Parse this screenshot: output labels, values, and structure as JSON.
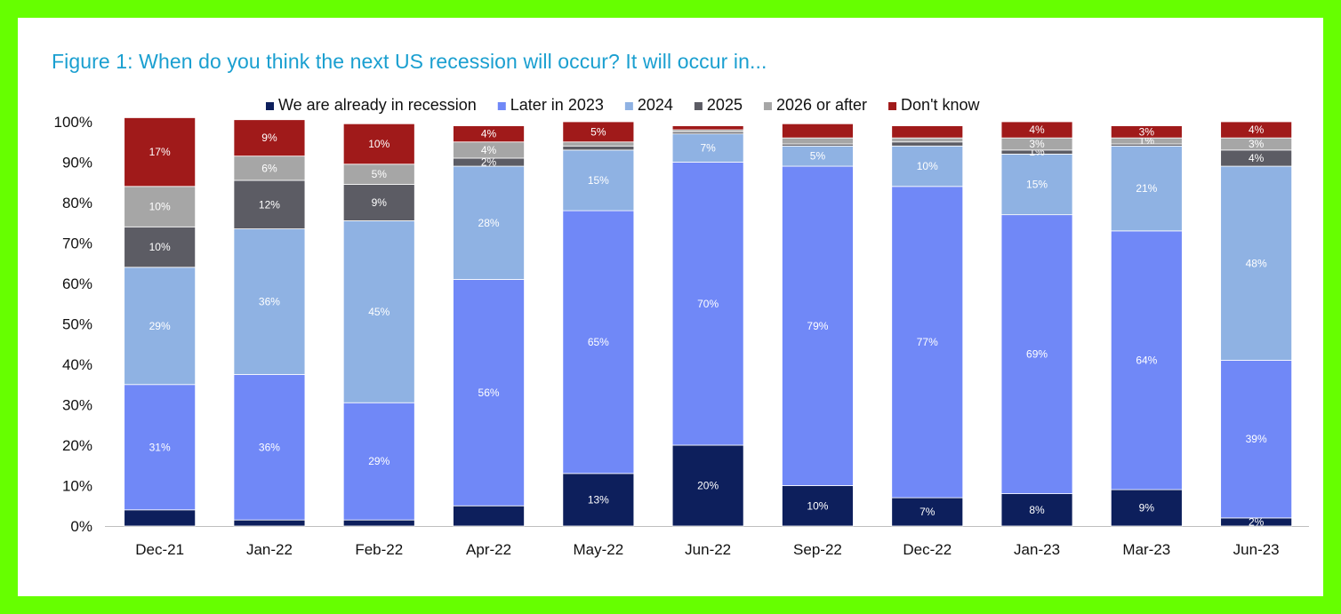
{
  "chart_data": {
    "type": "bar",
    "stacked": true,
    "title": "Figure 1: When do you think the next US recession will occur? It will occur in...",
    "xlabel": "",
    "ylabel": "",
    "ylim": [
      0,
      100
    ],
    "yticks": [
      "0%",
      "10%",
      "20%",
      "30%",
      "40%",
      "50%",
      "60%",
      "70%",
      "80%",
      "90%",
      "100%"
    ],
    "legend_position": "top",
    "grid": false,
    "categories": [
      "Dec-21",
      "Jan-22",
      "Feb-22",
      "Apr-22",
      "May-22",
      "Jun-22",
      "Sep-22",
      "Dec-22",
      "Jan-23",
      "Mar-23",
      "Jun-23"
    ],
    "series": [
      {
        "name": "We are already in recession",
        "color": "#0d1f5c",
        "values": [
          4,
          1.5,
          1.5,
          5,
          13,
          20,
          10,
          7,
          8,
          9,
          2
        ],
        "labels": [
          "",
          "",
          "",
          "",
          "13%",
          "20%",
          "10%",
          "7%",
          "8%",
          "9%",
          "2%"
        ]
      },
      {
        "name": "Later in 2023",
        "color": "#7088f7",
        "values": [
          31,
          36,
          29,
          56,
          65,
          70,
          79,
          77,
          69,
          64,
          39
        ],
        "labels": [
          "31%",
          "36%",
          "29%",
          "56%",
          "65%",
          "70%",
          "79%",
          "77%",
          "69%",
          "64%",
          "39%"
        ]
      },
      {
        "name": "2024",
        "color": "#8fb2e3",
        "values": [
          29,
          36,
          45,
          28,
          15,
          7,
          5,
          10,
          15,
          21,
          48
        ],
        "labels": [
          "29%",
          "36%",
          "45%",
          "28%",
          "15%",
          "7%",
          "5%",
          "10%",
          "15%",
          "21%",
          "48%"
        ]
      },
      {
        "name": "2025",
        "color": "#5c5c64",
        "values": [
          10,
          12,
          9,
          2,
          1,
          0.5,
          0.5,
          1,
          1,
          0.5,
          4
        ],
        "labels": [
          "10%",
          "12%",
          "9%",
          "2%",
          "",
          "",
          "",
          "",
          "1%",
          "",
          "4%"
        ]
      },
      {
        "name": "2026 or after",
        "color": "#a6a6a6",
        "values": [
          10,
          6,
          5,
          4,
          1,
          0.5,
          1.5,
          1,
          3,
          1.5,
          3
        ],
        "labels": [
          "10%",
          "6%",
          "5%",
          "4%",
          "",
          "",
          "",
          "",
          "3%",
          "1%",
          "3%"
        ]
      },
      {
        "name": "Don't know",
        "color": "#a01a1a",
        "values": [
          17,
          9,
          10,
          4,
          5,
          1,
          3.5,
          3,
          4,
          3,
          4
        ],
        "labels": [
          "17%",
          "9%",
          "10%",
          "4%",
          "5%",
          "",
          "",
          "",
          "4%",
          "3%",
          "4%"
        ]
      }
    ]
  }
}
